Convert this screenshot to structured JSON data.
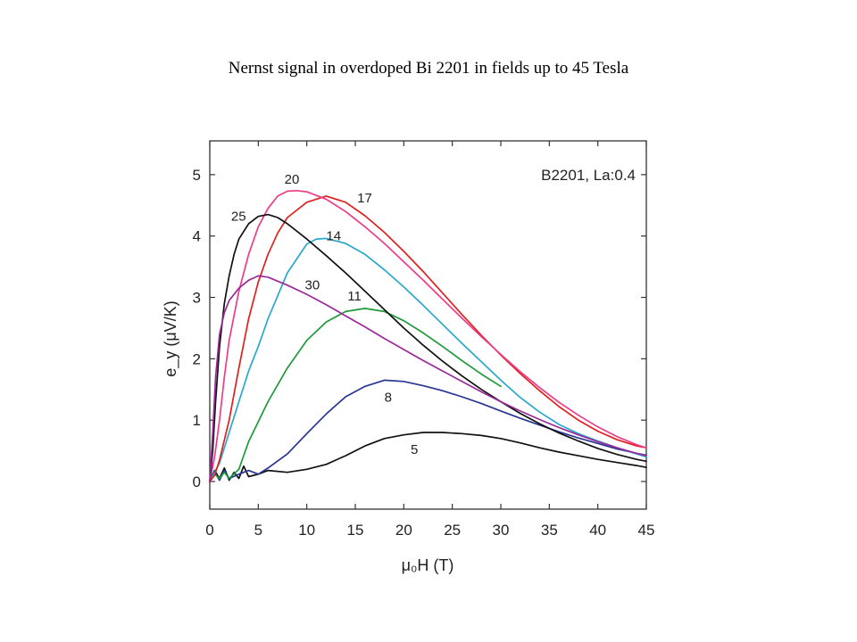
{
  "slide": {
    "title": "Nernst signal in overdoped Bi 2201 in fields up to 45 Tesla"
  },
  "chart_data": {
    "type": "line",
    "annotation": "B2201, La:0.4",
    "xlabel": "μ₀H (T)",
    "ylabel": "e_y (μV/K)",
    "xlim": [
      0,
      45
    ],
    "ylim": [
      -0.45,
      5.55
    ],
    "xticks": [
      0,
      5,
      10,
      15,
      20,
      25,
      30,
      35,
      40,
      45
    ],
    "yticks": [
      0,
      1,
      2,
      3,
      4,
      5
    ],
    "grid": false,
    "series": [
      {
        "name": "5",
        "color": "#111111",
        "label_pos": [
          20.7,
          0.45
        ],
        "x": [
          0,
          0.5,
          1,
          1.5,
          2,
          2.5,
          3,
          3.5,
          4,
          5,
          6,
          8,
          10,
          12,
          14,
          16,
          18,
          20,
          22,
          24,
          26,
          28,
          30,
          32,
          34,
          36,
          38,
          40,
          42,
          44,
          45
        ],
        "y": [
          0.0,
          0.18,
          0.05,
          0.22,
          0.02,
          0.15,
          0.05,
          0.25,
          0.08,
          0.12,
          0.18,
          0.15,
          0.2,
          0.28,
          0.42,
          0.58,
          0.7,
          0.76,
          0.8,
          0.8,
          0.78,
          0.75,
          0.7,
          0.63,
          0.55,
          0.48,
          0.42,
          0.36,
          0.31,
          0.26,
          0.23
        ]
      },
      {
        "name": "8",
        "color": "#283593",
        "label_pos": [
          18.0,
          1.3
        ],
        "x": [
          0,
          0.5,
          1,
          1.5,
          2,
          3,
          4,
          5,
          6,
          8,
          10,
          12,
          14,
          16,
          18,
          20,
          22,
          24,
          26,
          28,
          30,
          32,
          34,
          36,
          38,
          40,
          42,
          44,
          45
        ],
        "y": [
          0.0,
          0.15,
          0.02,
          0.18,
          0.05,
          0.12,
          0.18,
          0.12,
          0.22,
          0.45,
          0.78,
          1.1,
          1.38,
          1.55,
          1.65,
          1.63,
          1.56,
          1.48,
          1.38,
          1.27,
          1.15,
          1.03,
          0.92,
          0.81,
          0.71,
          0.62,
          0.53,
          0.46,
          0.43
        ]
      },
      {
        "name": "11",
        "color": "#1e9a3a",
        "label_pos": [
          14.2,
          2.95
        ],
        "x": [
          0,
          0.5,
          1,
          1.5,
          2,
          3,
          4,
          6,
          8,
          10,
          12,
          14,
          16,
          18,
          20,
          22,
          24,
          26,
          28,
          30
        ],
        "y": [
          0.0,
          0.12,
          0.05,
          0.15,
          0.05,
          0.2,
          0.65,
          1.3,
          1.85,
          2.3,
          2.6,
          2.77,
          2.82,
          2.77,
          2.62,
          2.42,
          2.2,
          1.97,
          1.75,
          1.55
        ]
      },
      {
        "name": "14",
        "color": "#29a8cc",
        "label_pos": [
          12.0,
          3.93
        ],
        "x": [
          0,
          1,
          2,
          3,
          4,
          5,
          6,
          8,
          10,
          11,
          12,
          14,
          16,
          18,
          20,
          22,
          24,
          26,
          28,
          30,
          32,
          34,
          36,
          38,
          40,
          42,
          44,
          45
        ],
        "y": [
          0.0,
          0.3,
          0.8,
          1.3,
          1.8,
          2.2,
          2.65,
          3.4,
          3.87,
          3.95,
          3.96,
          3.88,
          3.7,
          3.45,
          3.17,
          2.87,
          2.56,
          2.25,
          1.95,
          1.65,
          1.37,
          1.13,
          0.93,
          0.78,
          0.66,
          0.55,
          0.45,
          0.4
        ]
      },
      {
        "name": "17",
        "color": "#e02020",
        "label_pos": [
          15.2,
          4.55
        ],
        "x": [
          0,
          0.5,
          1,
          2,
          3,
          4,
          5,
          6,
          7,
          8,
          10,
          12,
          14,
          16,
          18,
          20,
          22,
          24,
          26,
          28,
          30,
          32,
          34,
          36,
          38,
          40,
          42,
          44,
          45
        ],
        "y": [
          0.0,
          0.1,
          0.35,
          1.0,
          1.85,
          2.65,
          3.25,
          3.7,
          4.05,
          4.3,
          4.55,
          4.65,
          4.55,
          4.33,
          4.06,
          3.75,
          3.42,
          3.07,
          2.72,
          2.38,
          2.06,
          1.76,
          1.48,
          1.22,
          1.0,
          0.82,
          0.68,
          0.58,
          0.55
        ]
      },
      {
        "name": "20",
        "color": "#ee3d88",
        "label_pos": [
          7.7,
          4.85
        ],
        "x": [
          0,
          0.5,
          1,
          1.5,
          2,
          3,
          4,
          5,
          6,
          7,
          8,
          9,
          10,
          12,
          14,
          16,
          18,
          20,
          22,
          24,
          26,
          28,
          30,
          32,
          34,
          36,
          38,
          40,
          42,
          44,
          45
        ],
        "y": [
          0.0,
          0.4,
          1.0,
          1.7,
          2.3,
          3.1,
          3.7,
          4.15,
          4.45,
          4.65,
          4.73,
          4.74,
          4.72,
          4.6,
          4.4,
          4.15,
          3.88,
          3.58,
          3.28,
          2.97,
          2.66,
          2.36,
          2.07,
          1.79,
          1.53,
          1.29,
          1.08,
          0.89,
          0.73,
          0.6,
          0.55
        ]
      },
      {
        "name": "25",
        "color": "#111111",
        "label_pos": [
          2.2,
          4.25
        ],
        "x": [
          0,
          0.3,
          0.6,
          1,
          1.5,
          2,
          2.5,
          3,
          4,
          5,
          6,
          7,
          8,
          10,
          12,
          14,
          16,
          18,
          20,
          22,
          24,
          26,
          28,
          30,
          32,
          34,
          36,
          38,
          40,
          42,
          44,
          45
        ],
        "y": [
          0.0,
          0.5,
          1.3,
          2.2,
          2.9,
          3.35,
          3.7,
          3.95,
          4.2,
          4.32,
          4.35,
          4.3,
          4.2,
          3.95,
          3.68,
          3.4,
          3.1,
          2.8,
          2.5,
          2.22,
          1.96,
          1.72,
          1.5,
          1.3,
          1.11,
          0.94,
          0.79,
          0.66,
          0.54,
          0.44,
          0.36,
          0.33
        ]
      },
      {
        "name": "30",
        "color": "#9a2a9a",
        "label_pos": [
          9.8,
          3.13
        ],
        "x": [
          0,
          0.3,
          0.6,
          1,
          1.5,
          2,
          3,
          4,
          5,
          6,
          8,
          10,
          12,
          14,
          16,
          18,
          20,
          22,
          24,
          26,
          28,
          30,
          32,
          34,
          36,
          38,
          40,
          42,
          44,
          45
        ],
        "y": [
          0.0,
          0.8,
          1.7,
          2.4,
          2.75,
          2.95,
          3.15,
          3.28,
          3.35,
          3.33,
          3.2,
          3.05,
          2.88,
          2.7,
          2.52,
          2.33,
          2.15,
          1.97,
          1.8,
          1.63,
          1.46,
          1.3,
          1.15,
          1.01,
          0.88,
          0.76,
          0.65,
          0.55,
          0.46,
          0.42
        ]
      }
    ]
  }
}
